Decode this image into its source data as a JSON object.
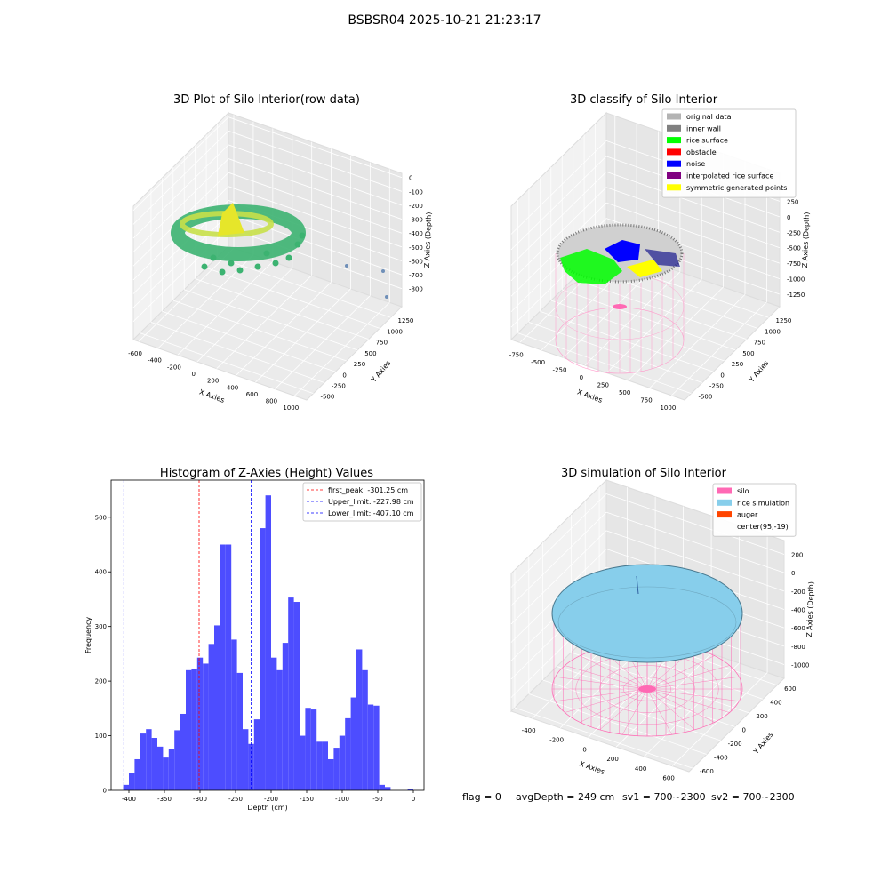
{
  "title": "BSBSR04 2025-10-21 21:23:17",
  "footer": [
    "flag = 0",
    "avgDepth = 249 cm",
    "sv1 = 700~2300",
    "sv2 = 700~2300"
  ],
  "chart_data": [
    {
      "type": "scatter3d",
      "title": "3D Plot of Silo Interior(row data)",
      "xlabel": "X Axies",
      "ylabel": "Y Axies",
      "zlabel": "Z Axies (Depth)",
      "xlim": [
        -655,
        1125
      ],
      "ylim": [
        -650,
        1500
      ],
      "zlim": [
        -930,
        30
      ],
      "xticks": [
        -600,
        -400,
        -200,
        0,
        200,
        400,
        600,
        800,
        1000
      ],
      "yticks": [
        -500,
        -250,
        0,
        250,
        500,
        750,
        1000,
        1250
      ],
      "zticks": [
        -800,
        -700,
        -600,
        -500,
        -400,
        -300,
        -200,
        -100,
        0
      ]
    },
    {
      "type": "scatter3d",
      "title": "3D classify of Silo Interior",
      "xlabel": "X Axies",
      "ylabel": "Y Axies",
      "zlabel": "Z Axies (Depth)",
      "xlim": [
        -850,
        1150
      ],
      "ylim": [
        -650,
        1500
      ],
      "zlim": [
        -1450,
        700
      ],
      "xticks": [
        -750,
        -500,
        -250,
        0,
        250,
        500,
        750,
        1000
      ],
      "yticks": [
        -500,
        -250,
        0,
        250,
        500,
        750,
        1000,
        1250
      ],
      "zticks": [
        -1250,
        -1000,
        -750,
        -500,
        -250,
        0,
        250
      ],
      "series": [
        {
          "name": "original data",
          "color": "#b3b3b3"
        },
        {
          "name": "inner wall",
          "color": "#808080"
        },
        {
          "name": "rice surface",
          "color": "#00ff00"
        },
        {
          "name": "obstacle",
          "color": "#ff0000"
        },
        {
          "name": "noise",
          "color": "#0000ff"
        },
        {
          "name": "interpolated rice surface",
          "color": "#800080"
        },
        {
          "name": "symmetric generated points",
          "color": "#ffff00"
        }
      ]
    },
    {
      "type": "histogram",
      "title": "Histogram of Z-Axies (Height) Values",
      "xlabel": "Depth (cm)",
      "ylabel": "Frequency",
      "color": "#4d4dff",
      "xlim": [
        -425,
        15
      ],
      "ylim": [
        0,
        568
      ],
      "xticks": [
        -400,
        -350,
        -300,
        -250,
        -200,
        -150,
        -100,
        -50,
        0
      ],
      "yticks": [
        0,
        100,
        200,
        300,
        400,
        500
      ],
      "bins": [
        -408,
        -400,
        -392,
        -384,
        -376,
        -368,
        -360,
        -352,
        -344,
        -336,
        -328,
        -320,
        -312,
        -304,
        -296,
        -288,
        -280,
        -272,
        -264,
        -256,
        -248,
        -240,
        -232,
        -224,
        -216,
        -208,
        -200,
        -192,
        -184,
        -176,
        -168,
        -160,
        -152,
        -144,
        -136,
        -128,
        -120,
        -112,
        -104,
        -96,
        -88,
        -80,
        -72,
        -64,
        -56,
        -48,
        -40,
        -32,
        -24,
        -16,
        -8,
        0
      ],
      "values": [
        10,
        32,
        57,
        104,
        112,
        96,
        80,
        60,
        76,
        110,
        140,
        220,
        223,
        243,
        232,
        268,
        302,
        450,
        450,
        276,
        215,
        112,
        85,
        130,
        480,
        540,
        243,
        220,
        270,
        353,
        345,
        100,
        151,
        148,
        89,
        89,
        57,
        78,
        100,
        132,
        170,
        258,
        220,
        157,
        155,
        10,
        6,
        0,
        0,
        0,
        2
      ],
      "vlines": [
        {
          "name": "first_peak: -301.25 cm",
          "value": -301.25,
          "color": "#ff0000"
        },
        {
          "name": "Upper_limit: -227.98 cm",
          "value": -227.98,
          "color": "#0000ff"
        },
        {
          "name": "Lower_limit: -407.10 cm",
          "value": -407.1,
          "color": "#0000ff"
        }
      ]
    },
    {
      "type": "surface3d",
      "title": "3D simulation of Silo Interior",
      "xlabel": "X Axies",
      "ylabel": "Y Axies",
      "zlabel": "Z Axies (Depth)",
      "xlim": [
        -550,
        720
      ],
      "ylim": [
        -650,
        700
      ],
      "zlim": [
        -1150,
        350
      ],
      "xticks": [
        -400,
        -200,
        0,
        200,
        400,
        600
      ],
      "yticks": [
        -600,
        -400,
        -200,
        0,
        200,
        400,
        600
      ],
      "zticks": [
        -1000,
        -800,
        -600,
        -400,
        -200,
        0,
        200
      ],
      "series": [
        {
          "name": "silo",
          "color": "#ff69b4"
        },
        {
          "name": "rice simulation",
          "color": "#87ceeb"
        },
        {
          "name": "auger",
          "color": "#ff4500"
        },
        {
          "name": "center(95,-19)"
        }
      ]
    }
  ]
}
